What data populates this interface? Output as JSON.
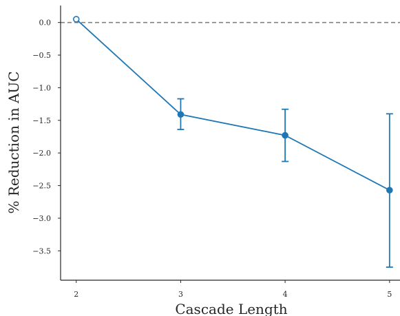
{
  "chart_data": {
    "type": "line",
    "title": "",
    "xlabel": "Cascade Length",
    "ylabel": "% Reduction in AUC",
    "x": [
      2,
      3,
      4,
      5
    ],
    "x_tick_labels": [
      "2",
      "3",
      "4",
      "5"
    ],
    "xlim": [
      1.85,
      5.1
    ],
    "ylim": [
      -3.95,
      0.26
    ],
    "y_ticks": [
      0.0,
      -0.5,
      -1.0,
      -1.5,
      -2.0,
      -2.5,
      -3.0,
      -3.5
    ],
    "y_tick_labels": [
      "0.0",
      "−0.5",
      "−1.0",
      "−1.5",
      "−2.0",
      "−2.5",
      "−3.0",
      "−3.5"
    ],
    "series": [
      {
        "values": [
          0.05,
          -1.41,
          -1.73,
          -2.57
        ],
        "error_low": [
          0.05,
          -1.64,
          -2.13,
          -3.75
        ],
        "error_high": [
          0.05,
          -1.17,
          -1.33,
          -1.4
        ],
        "marker_fill": [
          "white",
          "filled",
          "filled",
          "filled"
        ],
        "color": "#1f77b4"
      }
    ],
    "reference_line": {
      "y": 0.0,
      "style": "dashed",
      "color": "#808080"
    },
    "grid": false,
    "legend": "none"
  }
}
